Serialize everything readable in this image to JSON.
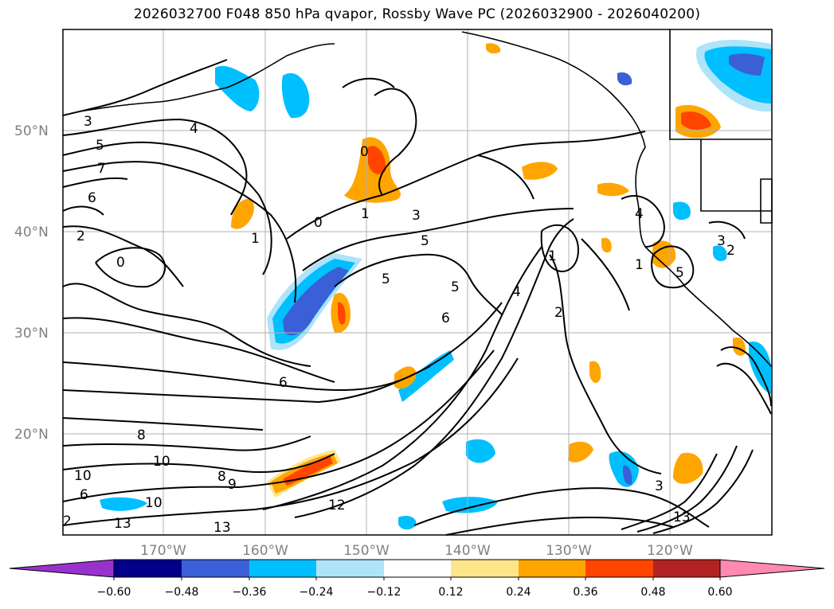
{
  "title": "2026032700 F048 850 hPa qvapor, Rossby Wave PC (2026032900 - 2026040200)",
  "lat_labels": [
    "50°N",
    "40°N",
    "30°N",
    "20°N"
  ],
  "lon_labels": [
    "170°W",
    "160°W",
    "150°W",
    "140°W",
    "130°W",
    "120°W"
  ],
  "colorbar": {
    "tick_labels": [
      "−0.60",
      "−0.48",
      "−0.36",
      "−0.24",
      "−0.12",
      "0.12",
      "0.24",
      "0.36",
      "0.48",
      "0.60"
    ],
    "colors": [
      "#9932cc",
      "#00008b",
      "#3b5fd6",
      "#00bfff",
      "#aee4fa",
      "#ffffff",
      "#fde68a",
      "#ffa500",
      "#ff4500",
      "#b22222",
      "#ff89b0"
    ]
  },
  "contour_labels": [
    "3",
    "4",
    "5",
    "7",
    "6",
    "2",
    "0",
    "1",
    "0",
    "0",
    "1",
    "3",
    "5",
    "5",
    "5",
    "6",
    "6",
    "8",
    "8",
    "9",
    "10",
    "10",
    "10",
    "6",
    "12",
    "13",
    "13",
    "2",
    "4",
    "3",
    "2",
    "1",
    "5",
    "4",
    "3",
    "1",
    "2",
    "13"
  ]
}
